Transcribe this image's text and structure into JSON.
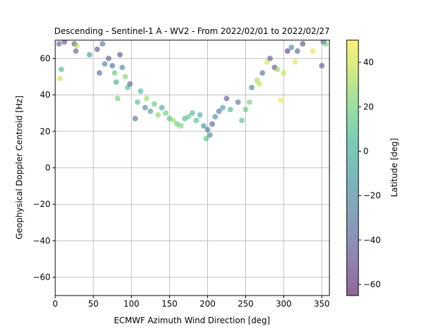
{
  "chart_data": {
    "type": "scatter",
    "title": "Descending - Sentinel-1 A - WV2 - From 2022/02/01 to 2022/02/27",
    "xlabel": "ECMWF Azimuth Wind Direction [deg]",
    "ylabel": "Geophysical Doppler Centroid [Hz]",
    "xlim": [
      0,
      360
    ],
    "ylim": [
      -70,
      70
    ],
    "xticks": [
      0,
      50,
      100,
      150,
      200,
      250,
      300,
      350
    ],
    "yticks": [
      -60,
      -40,
      -20,
      0,
      20,
      40,
      60
    ],
    "grid": true,
    "colorbar": {
      "label": "Latitude [deg]",
      "min": -65,
      "max": 50,
      "ticks": [
        -60,
        -40,
        -20,
        0,
        20,
        40
      ],
      "colormap": "viridis"
    },
    "marker_alpha": 0.55,
    "points": [
      {
        "x": 5,
        "y": 68,
        "lat": -40
      },
      {
        "x": 6,
        "y": 49,
        "lat": 40
      },
      {
        "x": 8,
        "y": 54,
        "lat": 8
      },
      {
        "x": 12,
        "y": 69,
        "lat": -50
      },
      {
        "x": 25,
        "y": 68,
        "lat": -45
      },
      {
        "x": 27,
        "y": 64,
        "lat": -42
      },
      {
        "x": 28,
        "y": 67,
        "lat": 35
      },
      {
        "x": 45,
        "y": 62,
        "lat": -15
      },
      {
        "x": 55,
        "y": 65,
        "lat": -48
      },
      {
        "x": 58,
        "y": 52,
        "lat": -38
      },
      {
        "x": 62,
        "y": 68,
        "lat": -30
      },
      {
        "x": 65,
        "y": 57,
        "lat": -25
      },
      {
        "x": 70,
        "y": 60,
        "lat": -44
      },
      {
        "x": 75,
        "y": 56,
        "lat": -35
      },
      {
        "x": 78,
        "y": 52,
        "lat": 15
      },
      {
        "x": 80,
        "y": 47,
        "lat": 0
      },
      {
        "x": 82,
        "y": 38,
        "lat": 20
      },
      {
        "x": 85,
        "y": 62,
        "lat": -50
      },
      {
        "x": 88,
        "y": 55,
        "lat": -20
      },
      {
        "x": 92,
        "y": 50,
        "lat": 25
      },
      {
        "x": 95,
        "y": 44,
        "lat": 10
      },
      {
        "x": 98,
        "y": 46,
        "lat": -40
      },
      {
        "x": 105,
        "y": 27,
        "lat": -35
      },
      {
        "x": 108,
        "y": 36,
        "lat": 10
      },
      {
        "x": 112,
        "y": 42,
        "lat": 5
      },
      {
        "x": 118,
        "y": 33,
        "lat": -20
      },
      {
        "x": 120,
        "y": 38,
        "lat": 30
      },
      {
        "x": 125,
        "y": 31,
        "lat": -10
      },
      {
        "x": 130,
        "y": 35,
        "lat": 15
      },
      {
        "x": 135,
        "y": 29,
        "lat": 25
      },
      {
        "x": 140,
        "y": 33,
        "lat": -5
      },
      {
        "x": 145,
        "y": 30,
        "lat": 20
      },
      {
        "x": 150,
        "y": 27,
        "lat": 12
      },
      {
        "x": 155,
        "y": 26,
        "lat": 30
      },
      {
        "x": 160,
        "y": 24,
        "lat": 18
      },
      {
        "x": 165,
        "y": 23,
        "lat": 22
      },
      {
        "x": 170,
        "y": 27,
        "lat": 8
      },
      {
        "x": 175,
        "y": 28,
        "lat": 15
      },
      {
        "x": 180,
        "y": 30,
        "lat": 5
      },
      {
        "x": 185,
        "y": 26,
        "lat": 10
      },
      {
        "x": 190,
        "y": 29,
        "lat": 0
      },
      {
        "x": 195,
        "y": 23,
        "lat": -15
      },
      {
        "x": 198,
        "y": 16,
        "lat": 12
      },
      {
        "x": 200,
        "y": 21,
        "lat": -30
      },
      {
        "x": 203,
        "y": 18,
        "lat": -25
      },
      {
        "x": 206,
        "y": 24,
        "lat": -40
      },
      {
        "x": 210,
        "y": 28,
        "lat": -20
      },
      {
        "x": 215,
        "y": 31,
        "lat": -35
      },
      {
        "x": 220,
        "y": 33,
        "lat": -10
      },
      {
        "x": 225,
        "y": 38,
        "lat": -45
      },
      {
        "x": 230,
        "y": 32,
        "lat": 5
      },
      {
        "x": 240,
        "y": 36,
        "lat": -30
      },
      {
        "x": 245,
        "y": 26,
        "lat": 10
      },
      {
        "x": 250,
        "y": 32,
        "lat": 15
      },
      {
        "x": 255,
        "y": 36,
        "lat": 20
      },
      {
        "x": 258,
        "y": 44,
        "lat": -25
      },
      {
        "x": 265,
        "y": 48,
        "lat": 30
      },
      {
        "x": 268,
        "y": 46,
        "lat": 38
      },
      {
        "x": 272,
        "y": 52,
        "lat": -35
      },
      {
        "x": 278,
        "y": 58,
        "lat": 42
      },
      {
        "x": 282,
        "y": 60,
        "lat": -45
      },
      {
        "x": 288,
        "y": 55,
        "lat": -50
      },
      {
        "x": 292,
        "y": 54,
        "lat": 30
      },
      {
        "x": 296,
        "y": 37,
        "lat": 45
      },
      {
        "x": 300,
        "y": 52,
        "lat": 40
      },
      {
        "x": 305,
        "y": 64,
        "lat": -55
      },
      {
        "x": 310,
        "y": 66,
        "lat": -20
      },
      {
        "x": 315,
        "y": 58,
        "lat": 42
      },
      {
        "x": 318,
        "y": 64,
        "lat": -40
      },
      {
        "x": 325,
        "y": 68,
        "lat": -50
      },
      {
        "x": 338,
        "y": 64,
        "lat": 45
      },
      {
        "x": 350,
        "y": 56,
        "lat": -45
      },
      {
        "x": 352,
        "y": 69,
        "lat": -40
      },
      {
        "x": 355,
        "y": 68,
        "lat": 20
      }
    ]
  }
}
